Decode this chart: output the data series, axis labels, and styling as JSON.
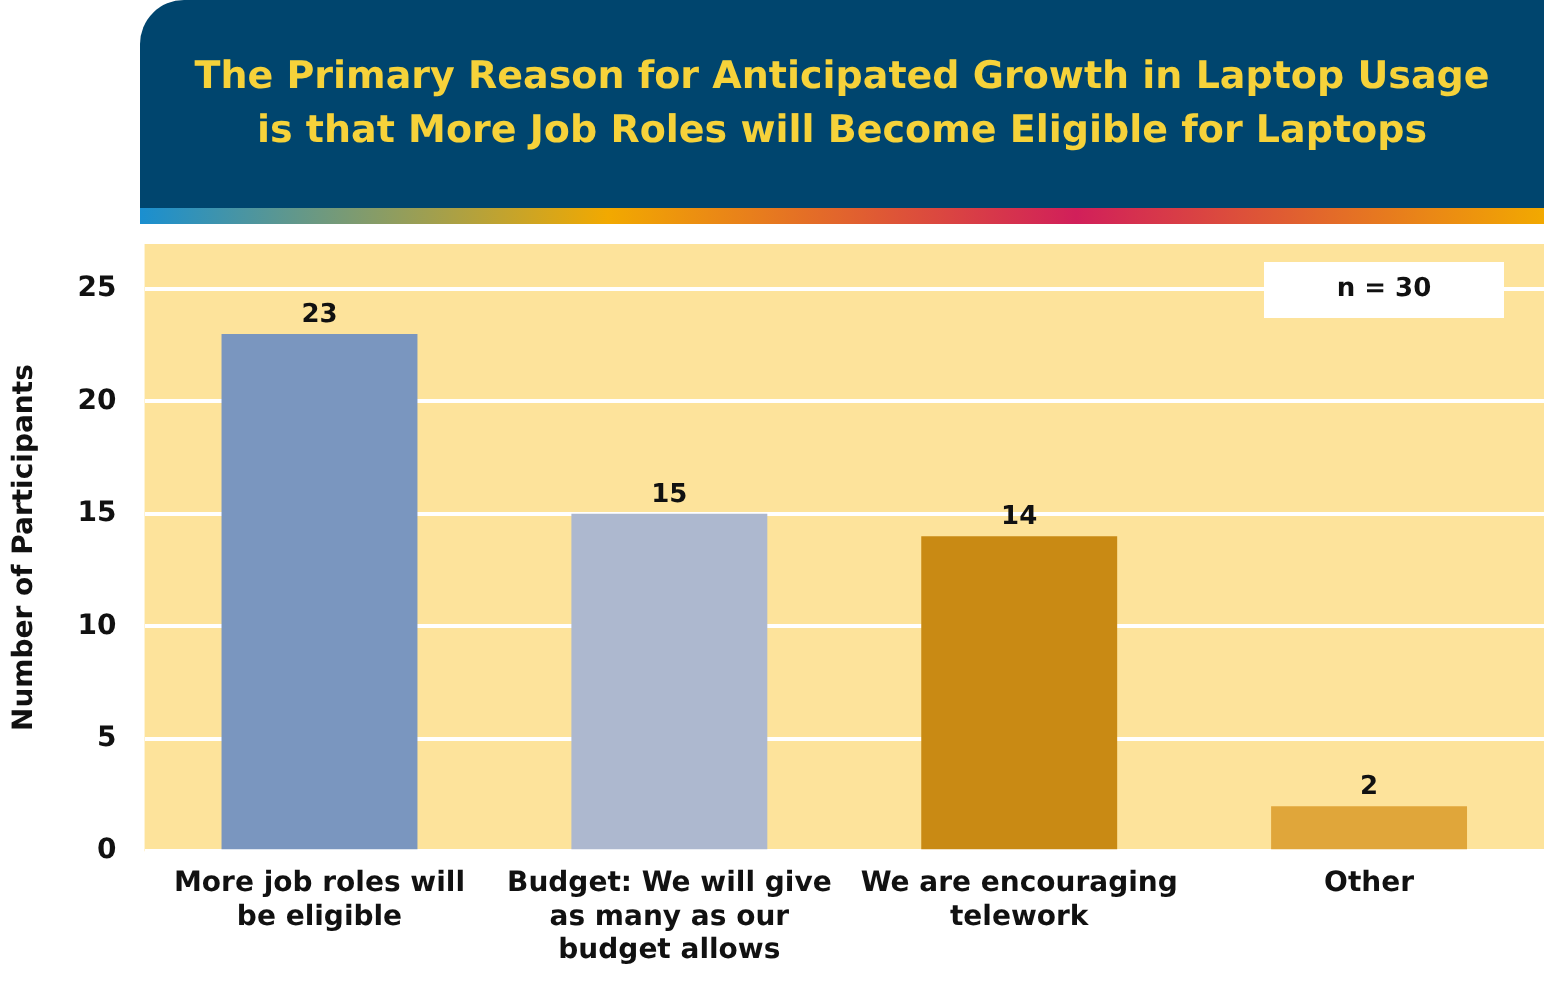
{
  "chart_data": {
    "type": "bar",
    "title": "The Primary Reason for Anticipated Growth in Laptop Usage is that More Job Roles will Become Eligible for Laptops",
    "ylabel": "Number of Participants",
    "categories": [
      "More job roles will be eligible",
      "Budget: We will give as many as our budget allows",
      "We are encouraging telework",
      "Other"
    ],
    "values": [
      23,
      15,
      14,
      2
    ],
    "colors": [
      "#7a96bf",
      "#adb8cf",
      "#c98a14",
      "#e0a63a"
    ],
    "ylim": [
      0,
      27
    ],
    "yticks": [
      0,
      5,
      10,
      15,
      20,
      25
    ],
    "grid": "y",
    "data_labels": true,
    "legend": false,
    "annotations": [
      "n = 30"
    ]
  }
}
